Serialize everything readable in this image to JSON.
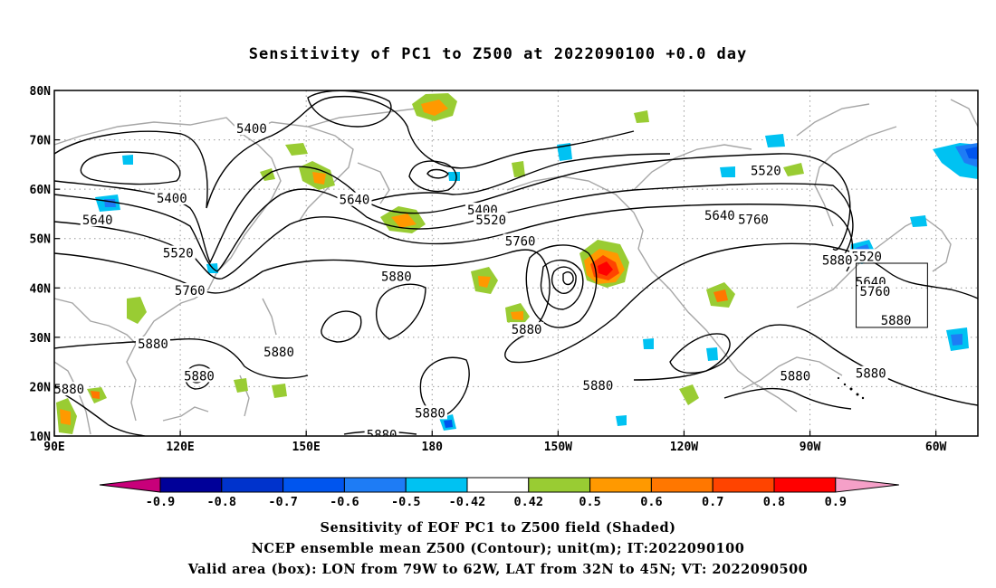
{
  "title": "Sensitivity of PC1 to Z500 at 2022090100 +0.0 day",
  "lat_ticks": [
    "80N",
    "70N",
    "60N",
    "50N",
    "40N",
    "30N",
    "20N",
    "10N"
  ],
  "lon_ticks": [
    "90E",
    "120E",
    "150E",
    "180",
    "150W",
    "120W",
    "90W",
    "60W"
  ],
  "contour_labels": [
    {
      "text": "5400",
      "lat": 72.3,
      "lon": 137
    },
    {
      "text": "5400",
      "lat": 58.2,
      "lon": 118
    },
    {
      "text": "5400",
      "lat": 55.8,
      "lon": 192
    },
    {
      "text": "5520",
      "lat": 63.8,
      "lon": 259.5
    },
    {
      "text": "5520",
      "lat": 53.8,
      "lon": 194
    },
    {
      "text": "5520",
      "lat": 47.1,
      "lon": 119.5
    },
    {
      "text": "5520",
      "lat": 46.4,
      "lon": 283.5
    },
    {
      "text": "5640",
      "lat": 57.9,
      "lon": 161.5
    },
    {
      "text": "5640",
      "lat": 54.7,
      "lon": 248.5
    },
    {
      "text": "5640",
      "lat": 53.8,
      "lon": 100.3
    },
    {
      "text": "5640",
      "lat": 41.2,
      "lon": 284.5
    },
    {
      "text": "5760",
      "lat": 53.9,
      "lon": 256.5
    },
    {
      "text": "5760",
      "lat": 49.5,
      "lon": 201
    },
    {
      "text": "5760",
      "lat": 39.3,
      "lon": 285.5
    },
    {
      "text": "5760",
      "lat": 39.5,
      "lon": 122.3
    },
    {
      "text": "5880",
      "lat": 45.6,
      "lon": 276.5
    },
    {
      "text": "5880",
      "lat": 42.3,
      "lon": 171.5
    },
    {
      "text": "5880",
      "lat": 33.5,
      "lon": 290.5
    },
    {
      "text": "5880",
      "lat": 31.6,
      "lon": 202.5
    },
    {
      "text": "5880",
      "lat": 28.7,
      "lon": 113.5
    },
    {
      "text": "5880",
      "lat": 27.0,
      "lon": 143.5
    },
    {
      "text": "5880",
      "lat": 22.2,
      "lon": 124.5
    },
    {
      "text": "5880",
      "lat": 22.2,
      "lon": 266.5
    },
    {
      "text": "5880",
      "lat": 22.7,
      "lon": 284.5
    },
    {
      "text": "5880",
      "lat": 20.3,
      "lon": 219.5
    },
    {
      "text": "5880",
      "lat": 19.5,
      "lon": 93.5
    },
    {
      "text": "5880",
      "lat": 14.7,
      "lon": 179.5
    },
    {
      "text": "5880",
      "lat": 10.3,
      "lon": 168
    }
  ],
  "colorbar": {
    "labels": [
      "-0.9",
      "-0.8",
      "-0.7",
      "-0.6",
      "-0.5",
      "-0.42",
      "0.42",
      "0.5",
      "0.6",
      "0.7",
      "0.8",
      "0.9"
    ],
    "colors": [
      "#000099",
      "#0033cc",
      "#0055ee",
      "#1e7cf5",
      "#00c2f2",
      "#ffffff",
      "#99cc33",
      "#ff9900",
      "#ff7700",
      "#ff4400",
      "#ff0000"
    ],
    "below_color": "#c8007a",
    "above_color": "#f5a0c8"
  },
  "valid_box": {
    "lon_from": -79,
    "lon_to": -62,
    "lat_from": 32,
    "lat_to": 45
  },
  "caption_line1": "Sensitivity of EOF PC1 to Z500 field (Shaded)",
  "caption_line2": "NCEP ensemble mean Z500 (Contour); unit(m); IT:2022090100",
  "caption_line3": "Valid area (box): LON from 79W to 62W, LAT from 32N to 45N; VT: 2022090500"
}
